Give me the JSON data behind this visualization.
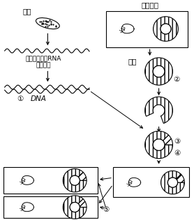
{
  "bg_color": "#ffffff",
  "text_color": "#000000",
  "labels": {
    "pancreas": "胰腺",
    "mrna_line1": "原胰岛素信使RNA",
    "reverse": "反转录鉦",
    "dna": "DNA",
    "ecoli": "大肠杆菌",
    "plasmid": "质粒",
    "step1": "①",
    "step2": "②",
    "step3": "③",
    "step4": "④",
    "step5": "⑤"
  },
  "font_size": 6.5,
  "fig_width": 2.78,
  "fig_height": 3.16,
  "dpi": 100
}
